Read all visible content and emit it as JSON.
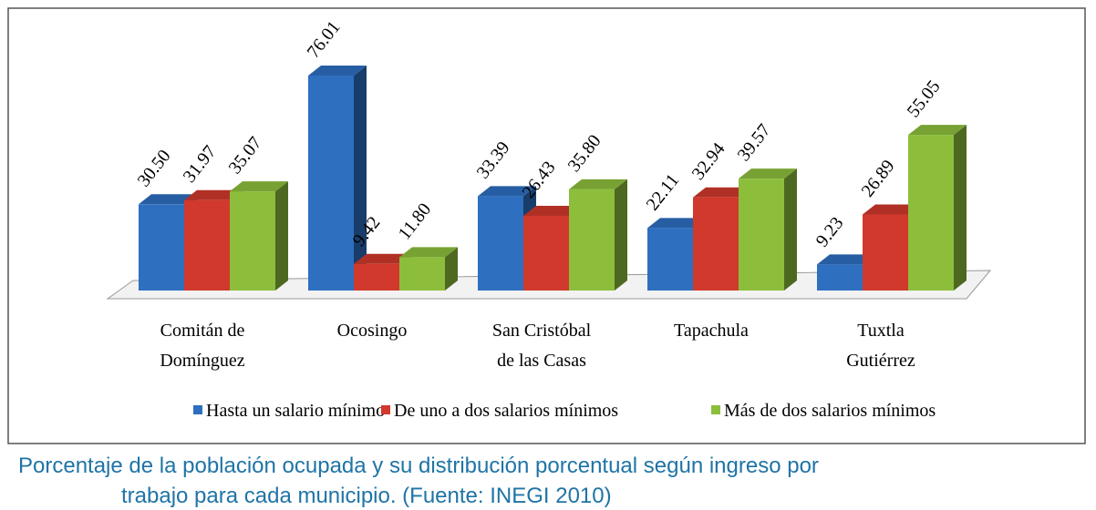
{
  "chart_data": {
    "type": "bar3d",
    "categories": [
      [
        "Comitán de",
        "Domínguez"
      ],
      [
        "Ocosingo"
      ],
      [
        "San Cristóbal",
        "de las Casas"
      ],
      [
        "Tapachula"
      ],
      [
        "Tuxtla",
        "Gutiérrez"
      ]
    ],
    "series": [
      {
        "name": "Hasta un salario mínimo",
        "color": "#2e6fc0",
        "values": [
          30.5,
          76.01,
          33.39,
          22.11,
          9.23
        ],
        "value_labels": [
          "30.50",
          "76.01",
          "33.39",
          "22.11",
          "9.23"
        ]
      },
      {
        "name": "De uno a dos salarios mínimos",
        "color": "#d0392c",
        "values": [
          31.97,
          9.42,
          26.43,
          32.94,
          26.89
        ],
        "value_labels": [
          "31.97",
          "9.42",
          "26.43",
          "32.94",
          "26.89"
        ]
      },
      {
        "name": "Más de dos salarios mínimos",
        "color": "#8cbe3c",
        "values": [
          35.07,
          11.8,
          35.8,
          39.57,
          55.05
        ],
        "value_labels": [
          "35.07",
          "11.80",
          "35.80",
          "39.57",
          "55.05"
        ]
      }
    ],
    "legend": "bottom"
  },
  "caption": [
    "Porcentaje de la población ocupada y su distribución porcentual según ingreso por",
    "trabajo para cada municipio. (Fuente: INEGI 2010)"
  ]
}
